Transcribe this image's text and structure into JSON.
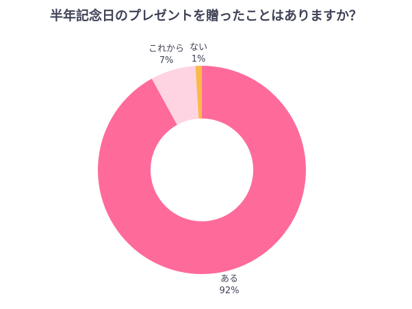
{
  "chart_data": {
    "type": "pie",
    "title": "半年記念日のプレゼントを贈ったことはありますか？",
    "donut": true,
    "start_angle_deg": 0,
    "slices": [
      {
        "label": "ある",
        "value": 92,
        "value_label": "92%",
        "color": "#fe6b9a"
      },
      {
        "label": "これから",
        "value": 7,
        "value_label": "7%",
        "color": "#ffd4e2"
      },
      {
        "label": "ない",
        "value": 1,
        "value_label": "1%",
        "color": "#fbb94b"
      }
    ]
  }
}
